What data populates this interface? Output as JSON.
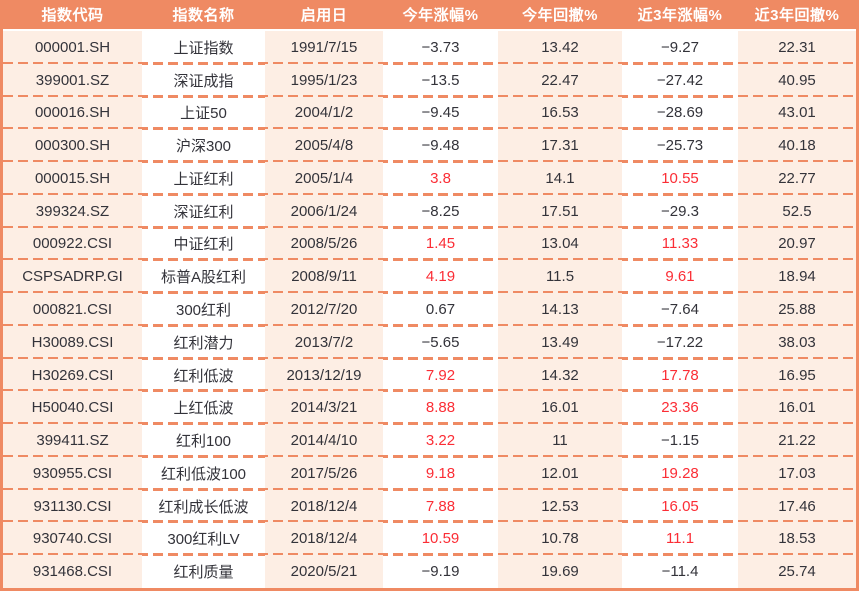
{
  "colors": {
    "header_bg": "#ef8a63",
    "header_text": "#ffffff",
    "stripe_bg": "#fdeee4",
    "border": "#ef8a63",
    "gain_highlight_red": "#fb2d35",
    "text_dark": "#33333a"
  },
  "chart_data": {
    "type": "table",
    "columns": [
      "指数代码",
      "指数名称",
      "启用日",
      "今年涨幅%",
      "今年回撤%",
      "近3年涨幅%",
      "近3年回撤%"
    ],
    "rows": [
      {
        "code": "000001.SH",
        "name": "上证指数",
        "date": "1991/7/15",
        "ytd_gain": "−3.73",
        "ytd_dd": "13.42",
        "y3_gain": "−9.27",
        "y3_dd": "22.31",
        "ytd_gain_red": false,
        "y3_gain_red": false
      },
      {
        "code": "399001.SZ",
        "name": "深证成指",
        "date": "1995/1/23",
        "ytd_gain": "−13.5",
        "ytd_dd": "22.47",
        "y3_gain": "−27.42",
        "y3_dd": "40.95",
        "ytd_gain_red": false,
        "y3_gain_red": false
      },
      {
        "code": "000016.SH",
        "name": "上证50",
        "date": "2004/1/2",
        "ytd_gain": "−9.45",
        "ytd_dd": "16.53",
        "y3_gain": "−28.69",
        "y3_dd": "43.01",
        "ytd_gain_red": false,
        "y3_gain_red": false
      },
      {
        "code": "000300.SH",
        "name": "沪深300",
        "date": "2005/4/8",
        "ytd_gain": "−9.48",
        "ytd_dd": "17.31",
        "y3_gain": "−25.73",
        "y3_dd": "40.18",
        "ytd_gain_red": false,
        "y3_gain_red": false
      },
      {
        "code": "000015.SH",
        "name": "上证红利",
        "date": "2005/1/4",
        "ytd_gain": "3.8",
        "ytd_dd": "14.1",
        "y3_gain": "10.55",
        "y3_dd": "22.77",
        "ytd_gain_red": true,
        "y3_gain_red": true
      },
      {
        "code": "399324.SZ",
        "name": "深证红利",
        "date": "2006/1/24",
        "ytd_gain": "−8.25",
        "ytd_dd": "17.51",
        "y3_gain": "−29.3",
        "y3_dd": "52.5",
        "ytd_gain_red": false,
        "y3_gain_red": false
      },
      {
        "code": "000922.CSI",
        "name": "中证红利",
        "date": "2008/5/26",
        "ytd_gain": "1.45",
        "ytd_dd": "13.04",
        "y3_gain": "11.33",
        "y3_dd": "20.97",
        "ytd_gain_red": true,
        "y3_gain_red": true
      },
      {
        "code": "CSPSADRP.GI",
        "name": "标普A股红利",
        "date": "2008/9/11",
        "ytd_gain": "4.19",
        "ytd_dd": "11.5",
        "y3_gain": "9.61",
        "y3_dd": "18.94",
        "ytd_gain_red": true,
        "y3_gain_red": true
      },
      {
        "code": "000821.CSI",
        "name": "300红利",
        "date": "2012/7/20",
        "ytd_gain": "0.67",
        "ytd_dd": "14.13",
        "y3_gain": "−7.64",
        "y3_dd": "25.88",
        "ytd_gain_red": false,
        "y3_gain_red": false
      },
      {
        "code": "H30089.CSI",
        "name": "红利潜力",
        "date": "2013/7/2",
        "ytd_gain": "−5.65",
        "ytd_dd": "13.49",
        "y3_gain": "−17.22",
        "y3_dd": "38.03",
        "ytd_gain_red": false,
        "y3_gain_red": false
      },
      {
        "code": "H30269.CSI",
        "name": "红利低波",
        "date": "2013/12/19",
        "ytd_gain": "7.92",
        "ytd_dd": "14.32",
        "y3_gain": "17.78",
        "y3_dd": "16.95",
        "ytd_gain_red": true,
        "y3_gain_red": true
      },
      {
        "code": "H50040.CSI",
        "name": "上红低波",
        "date": "2014/3/21",
        "ytd_gain": "8.88",
        "ytd_dd": "16.01",
        "y3_gain": "23.36",
        "y3_dd": "16.01",
        "ytd_gain_red": true,
        "y3_gain_red": true
      },
      {
        "code": "399411.SZ",
        "name": "红利100",
        "date": "2014/4/10",
        "ytd_gain": "3.22",
        "ytd_dd": "11",
        "y3_gain": "−1.15",
        "y3_dd": "21.22",
        "ytd_gain_red": true,
        "y3_gain_red": false
      },
      {
        "code": "930955.CSI",
        "name": "红利低波100",
        "date": "2017/5/26",
        "ytd_gain": "9.18",
        "ytd_dd": "12.01",
        "y3_gain": "19.28",
        "y3_dd": "17.03",
        "ytd_gain_red": true,
        "y3_gain_red": true
      },
      {
        "code": "931130.CSI",
        "name": "红利成长低波",
        "date": "2018/12/4",
        "ytd_gain": "7.88",
        "ytd_dd": "12.53",
        "y3_gain": "16.05",
        "y3_dd": "17.46",
        "ytd_gain_red": true,
        "y3_gain_red": true
      },
      {
        "code": "930740.CSI",
        "name": "300红利LV",
        "date": "2018/12/4",
        "ytd_gain": "10.59",
        "ytd_dd": "10.78",
        "y3_gain": "11.1",
        "y3_dd": "18.53",
        "ytd_gain_red": true,
        "y3_gain_red": true
      },
      {
        "code": "931468.CSI",
        "name": "红利质量",
        "date": "2020/5/21",
        "ytd_gain": "−9.19",
        "ytd_dd": "19.69",
        "y3_gain": "−11.4",
        "y3_dd": "25.74",
        "ytd_gain_red": false,
        "y3_gain_red": false
      }
    ]
  }
}
